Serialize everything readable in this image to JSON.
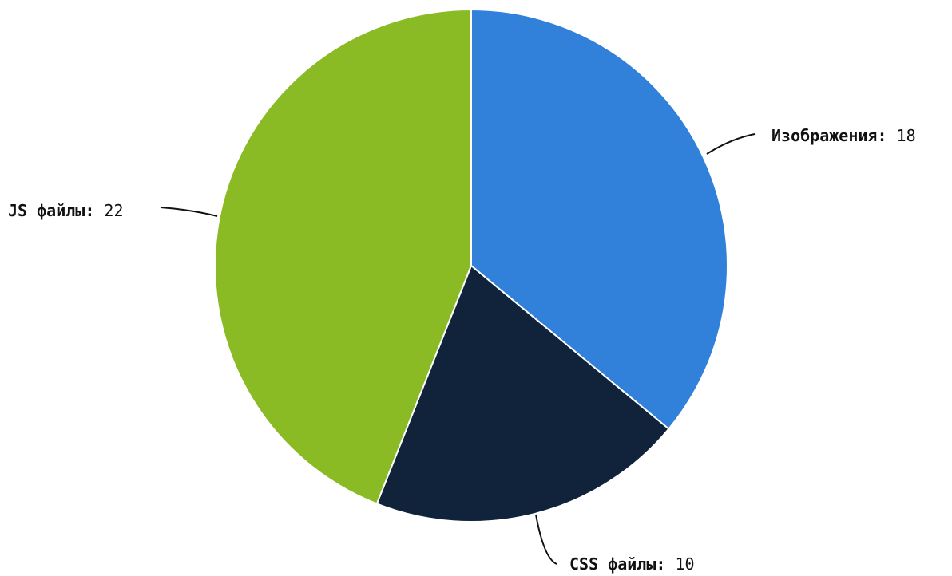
{
  "chart_data": {
    "type": "pie",
    "title": "",
    "slices": [
      {
        "label": "Изображения",
        "value": 18,
        "color": "#3181db"
      },
      {
        "label": "CSS файлы",
        "value": 10,
        "color": "#10233a"
      },
      {
        "label": "JS файлы",
        "value": 22,
        "color": "#8bbb24"
      }
    ],
    "start_angle": "12 o'clock",
    "direction": "clockwise",
    "legend": "none",
    "label_format": "name: value",
    "slice_border_color": "#ffffff",
    "leader_line_color": "#111111"
  }
}
